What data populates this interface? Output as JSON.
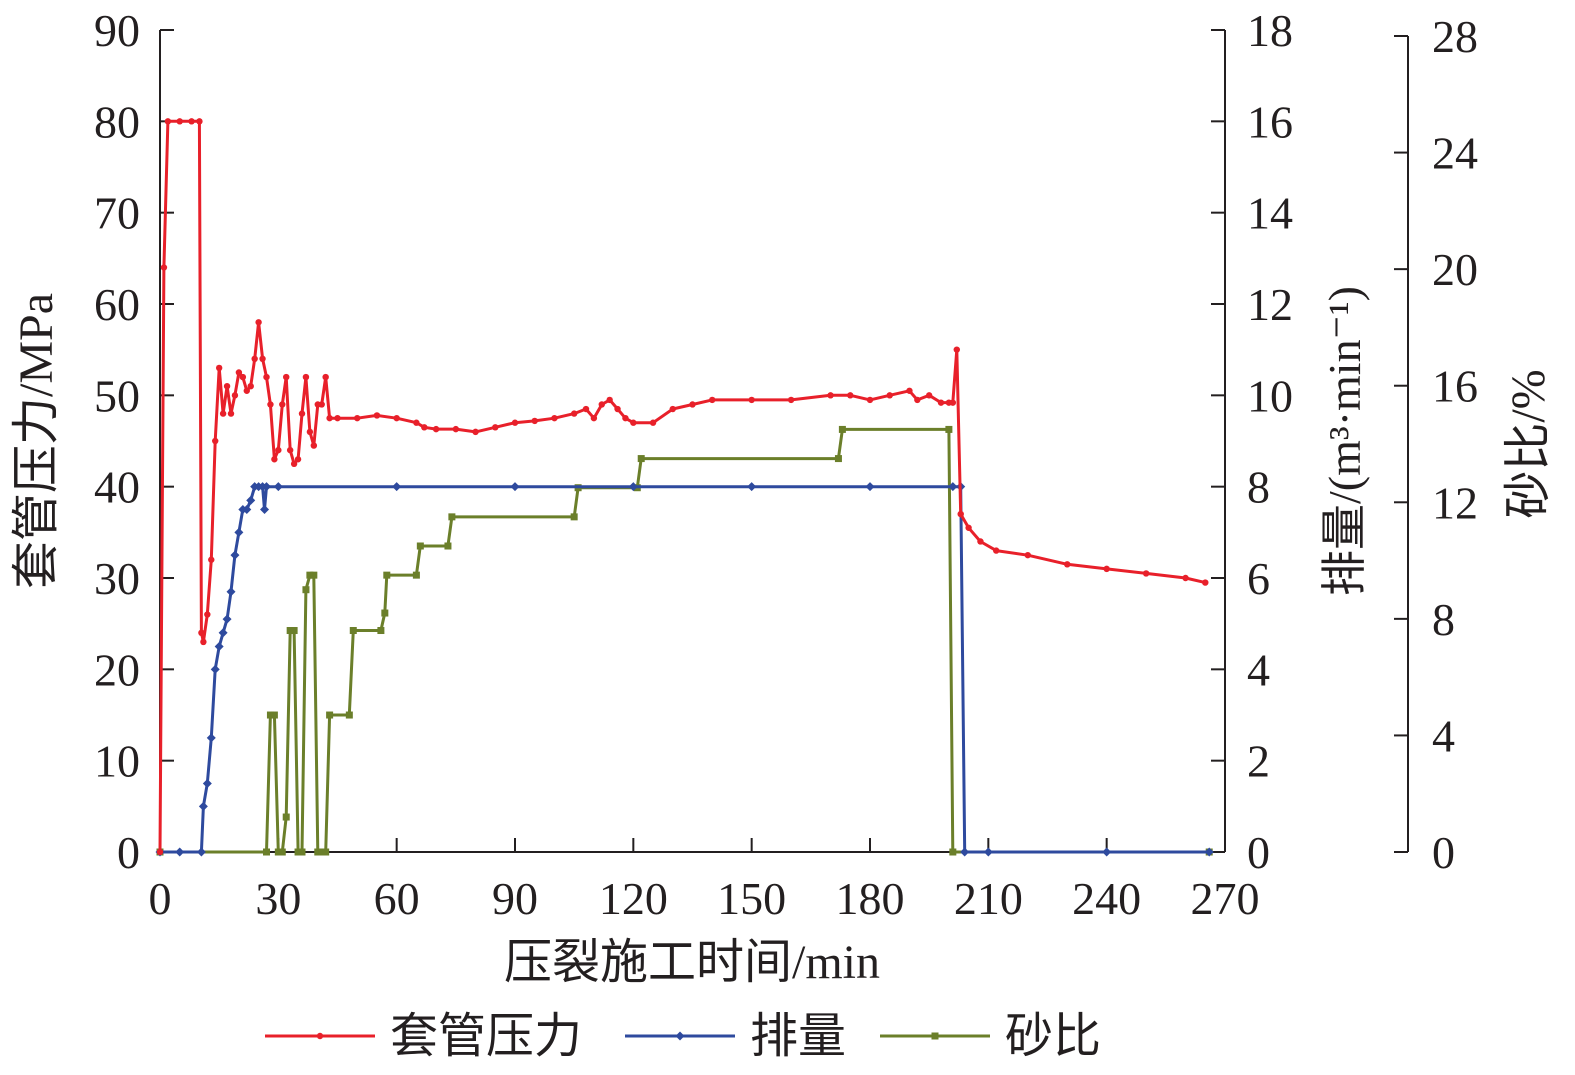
{
  "chart_data": {
    "type": "line",
    "xlabel": "压裂施工时间/min",
    "ylabel": "套管压力/MPa",
    "y2label": "排量/(m³·min⁻¹)",
    "y3label": "砂比/%",
    "xlim": [
      0,
      270
    ],
    "ylim": [
      0,
      90
    ],
    "y2lim": [
      0,
      18
    ],
    "y3lim": [
      0,
      28
    ],
    "xticks": [
      0,
      30,
      60,
      90,
      120,
      150,
      180,
      210,
      240,
      270
    ],
    "yticks": [
      0,
      10,
      20,
      30,
      40,
      50,
      60,
      70,
      80,
      90
    ],
    "y2ticks": [
      0,
      2,
      4,
      6,
      8,
      10,
      12,
      14,
      16,
      18
    ],
    "y3ticks": [
      0,
      4,
      8,
      12,
      16,
      20,
      24,
      28
    ],
    "legend_position": "bottom",
    "series": [
      {
        "name": "套管压力",
        "axis": "left",
        "color": "#e8202a",
        "marker": "circle",
        "points": [
          [
            0,
            0
          ],
          [
            1,
            64
          ],
          [
            2,
            80
          ],
          [
            5,
            80
          ],
          [
            8,
            80
          ],
          [
            10,
            80
          ],
          [
            10.5,
            24
          ],
          [
            11,
            23
          ],
          [
            12,
            26
          ],
          [
            13,
            32
          ],
          [
            14,
            45
          ],
          [
            15,
            53
          ],
          [
            16,
            48
          ],
          [
            17,
            51
          ],
          [
            18,
            48
          ],
          [
            19,
            50
          ],
          [
            20,
            52.5
          ],
          [
            21,
            52
          ],
          [
            22,
            50.5
          ],
          [
            23,
            51
          ],
          [
            24,
            54
          ],
          [
            25,
            58
          ],
          [
            26,
            54
          ],
          [
            27,
            52
          ],
          [
            28,
            49
          ],
          [
            29,
            43
          ],
          [
            30,
            44
          ],
          [
            31,
            49
          ],
          [
            32,
            52
          ],
          [
            33,
            44
          ],
          [
            34,
            42.5
          ],
          [
            35,
            43
          ],
          [
            36,
            48
          ],
          [
            37,
            52
          ],
          [
            38,
            46
          ],
          [
            39,
            44.5
          ],
          [
            40,
            49
          ],
          [
            41,
            49
          ],
          [
            42,
            52
          ],
          [
            43,
            47.5
          ],
          [
            45,
            47.5
          ],
          [
            50,
            47.5
          ],
          [
            55,
            47.8
          ],
          [
            60,
            47.5
          ],
          [
            65,
            47
          ],
          [
            67,
            46.5
          ],
          [
            70,
            46.3
          ],
          [
            75,
            46.3
          ],
          [
            80,
            46
          ],
          [
            85,
            46.5
          ],
          [
            90,
            47
          ],
          [
            95,
            47.2
          ],
          [
            100,
            47.5
          ],
          [
            105,
            48
          ],
          [
            108,
            48.5
          ],
          [
            110,
            47.5
          ],
          [
            112,
            49
          ],
          [
            114,
            49.5
          ],
          [
            116,
            48.5
          ],
          [
            118,
            47.5
          ],
          [
            120,
            47
          ],
          [
            125,
            47
          ],
          [
            130,
            48.5
          ],
          [
            135,
            49
          ],
          [
            140,
            49.5
          ],
          [
            150,
            49.5
          ],
          [
            160,
            49.5
          ],
          [
            170,
            50
          ],
          [
            175,
            50
          ],
          [
            180,
            49.5
          ],
          [
            185,
            50
          ],
          [
            190,
            50.5
          ],
          [
            192,
            49.5
          ],
          [
            195,
            50
          ],
          [
            198,
            49.2
          ],
          [
            200,
            49.2
          ],
          [
            201,
            49.2
          ],
          [
            202,
            55
          ],
          [
            203,
            37
          ],
          [
            205,
            35.5
          ],
          [
            208,
            34
          ],
          [
            212,
            33
          ],
          [
            220,
            32.5
          ],
          [
            230,
            31.5
          ],
          [
            240,
            31
          ],
          [
            250,
            30.5
          ],
          [
            260,
            30
          ],
          [
            265,
            29.5
          ]
        ]
      },
      {
        "name": "排量",
        "axis": "right1",
        "color": "#2e4a9e",
        "marker": "diamond",
        "points": [
          [
            0,
            0
          ],
          [
            5,
            0
          ],
          [
            10.5,
            0
          ],
          [
            11,
            1
          ],
          [
            12,
            1.5
          ],
          [
            13,
            2.5
          ],
          [
            14,
            4
          ],
          [
            15,
            4.5
          ],
          [
            16,
            4.8
          ],
          [
            17,
            5.1
          ],
          [
            18,
            5.7
          ],
          [
            19,
            6.5
          ],
          [
            20,
            7
          ],
          [
            21,
            7.5
          ],
          [
            22,
            7.5
          ],
          [
            23,
            7.7
          ],
          [
            24,
            8
          ],
          [
            25,
            8
          ],
          [
            26,
            8
          ],
          [
            26.5,
            7.5
          ],
          [
            27,
            8
          ],
          [
            30,
            8
          ],
          [
            60,
            8
          ],
          [
            90,
            8
          ],
          [
            120,
            8
          ],
          [
            150,
            8
          ],
          [
            180,
            8
          ],
          [
            201,
            8
          ],
          [
            203,
            8
          ],
          [
            204,
            0
          ],
          [
            210,
            0
          ],
          [
            240,
            0
          ],
          [
            266,
            0
          ]
        ]
      },
      {
        "name": "砂比",
        "axis": "right2",
        "color": "#6b7f2a",
        "marker": "square",
        "points": [
          [
            0,
            0
          ],
          [
            27,
            0
          ],
          [
            28,
            4.7
          ],
          [
            29,
            4.7
          ],
          [
            30,
            0
          ],
          [
            31,
            0
          ],
          [
            32,
            1.2
          ],
          [
            33,
            7.6
          ],
          [
            34,
            7.6
          ],
          [
            35,
            0
          ],
          [
            36,
            0
          ],
          [
            37,
            9
          ],
          [
            38,
            9.5
          ],
          [
            39,
            9.5
          ],
          [
            40,
            0
          ],
          [
            41,
            0
          ],
          [
            42,
            0
          ],
          [
            43,
            4.7
          ],
          [
            48,
            4.7
          ],
          [
            49,
            7.6
          ],
          [
            56,
            7.6
          ],
          [
            57,
            8.2
          ],
          [
            57.5,
            9.5
          ],
          [
            65,
            9.5
          ],
          [
            66,
            10.5
          ],
          [
            73,
            10.5
          ],
          [
            74,
            11.5
          ],
          [
            105,
            11.5
          ],
          [
            106,
            12.5
          ],
          [
            121,
            12.5
          ],
          [
            122,
            13.5
          ],
          [
            172,
            13.5
          ],
          [
            173,
            14.5
          ],
          [
            200,
            14.5
          ],
          [
            201,
            0
          ],
          [
            266,
            0
          ]
        ]
      }
    ]
  }
}
